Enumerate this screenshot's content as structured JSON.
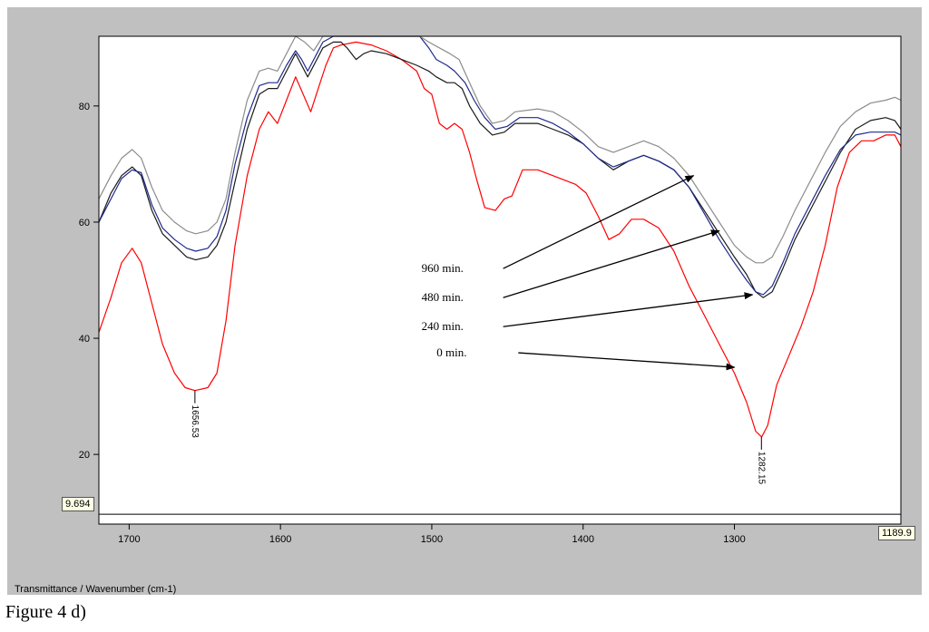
{
  "caption": "Figure 4 d)",
  "chart_data": {
    "type": "line",
    "xlabel": "Transmittance / Wavenumber (cm-1)",
    "xlim": [
      1720,
      1190
    ],
    "ylim": [
      8,
      92
    ],
    "x_ticks": [
      1700,
      1600,
      1500,
      1400,
      1300
    ],
    "y_ticks": [
      20,
      40,
      60,
      80
    ],
    "grid": false,
    "cursor": {
      "y_value": "9.694",
      "x_value": "1189.9"
    },
    "peak_labels": [
      {
        "x": 1656.53,
        "y": 31,
        "text": "1656.53"
      },
      {
        "x": 1282.15,
        "y": 23,
        "text": "1282.15"
      }
    ],
    "annotations": [
      {
        "text": "960 min.",
        "from": [
          1490,
          52
        ],
        "to": [
          1327,
          68
        ]
      },
      {
        "text": "480 min.",
        "from": [
          1490,
          47
        ],
        "to": [
          1310,
          58.5
        ]
      },
      {
        "text": "240 min.",
        "from": [
          1490,
          42
        ],
        "to": [
          1288,
          47.5
        ]
      },
      {
        "text": "0 min.",
        "from": [
          1480,
          37.5
        ],
        "to": [
          1300,
          35
        ]
      }
    ],
    "series": [
      {
        "color": "#ff0000",
        "points": [
          [
            1720,
            41
          ],
          [
            1712,
            47
          ],
          [
            1705,
            53
          ],
          [
            1698,
            55.5
          ],
          [
            1692,
            53
          ],
          [
            1685,
            46
          ],
          [
            1678,
            39
          ],
          [
            1670,
            34
          ],
          [
            1663,
            31.5
          ],
          [
            1656.5,
            31
          ],
          [
            1648,
            31.5
          ],
          [
            1642,
            34
          ],
          [
            1636,
            43
          ],
          [
            1630,
            56
          ],
          [
            1622,
            68
          ],
          [
            1614,
            76
          ],
          [
            1608,
            79
          ],
          [
            1602,
            77
          ],
          [
            1596,
            81
          ],
          [
            1590,
            85
          ],
          [
            1585,
            82
          ],
          [
            1580,
            79
          ],
          [
            1575,
            83
          ],
          [
            1570,
            87
          ],
          [
            1565,
            90
          ],
          [
            1560,
            90.5
          ],
          [
            1550,
            91
          ],
          [
            1540,
            90.5
          ],
          [
            1530,
            89.5
          ],
          [
            1520,
            88
          ],
          [
            1510,
            86
          ],
          [
            1505,
            83
          ],
          [
            1500,
            82
          ],
          [
            1495,
            77
          ],
          [
            1490,
            76
          ],
          [
            1485,
            77
          ],
          [
            1480,
            76
          ],
          [
            1475,
            72
          ],
          [
            1470,
            67
          ],
          [
            1465,
            62.5
          ],
          [
            1458,
            62
          ],
          [
            1452,
            64
          ],
          [
            1447,
            64.5
          ],
          [
            1440,
            69
          ],
          [
            1430,
            69
          ],
          [
            1420,
            68
          ],
          [
            1405,
            66.5
          ],
          [
            1398,
            65
          ],
          [
            1390,
            61
          ],
          [
            1383,
            57
          ],
          [
            1376,
            58
          ],
          [
            1368,
            60.5
          ],
          [
            1360,
            60.5
          ],
          [
            1350,
            59
          ],
          [
            1340,
            55
          ],
          [
            1330,
            49
          ],
          [
            1320,
            44
          ],
          [
            1310,
            39
          ],
          [
            1300,
            34
          ],
          [
            1292,
            29
          ],
          [
            1286,
            24
          ],
          [
            1282,
            23
          ],
          [
            1278,
            25
          ],
          [
            1272,
            32
          ],
          [
            1264,
            37
          ],
          [
            1256,
            42
          ],
          [
            1248,
            48
          ],
          [
            1240,
            56
          ],
          [
            1232,
            66
          ],
          [
            1224,
            72
          ],
          [
            1216,
            74
          ],
          [
            1208,
            74
          ],
          [
            1200,
            75
          ],
          [
            1194,
            75
          ],
          [
            1190,
            73
          ]
        ]
      },
      {
        "color": "#1a1a1a",
        "points": [
          [
            1720,
            60
          ],
          [
            1712,
            65
          ],
          [
            1705,
            68
          ],
          [
            1698,
            69.5
          ],
          [
            1692,
            68
          ],
          [
            1685,
            62
          ],
          [
            1678,
            58
          ],
          [
            1670,
            56
          ],
          [
            1662,
            54
          ],
          [
            1656,
            53.5
          ],
          [
            1648,
            54
          ],
          [
            1642,
            56
          ],
          [
            1636,
            60
          ],
          [
            1630,
            67
          ],
          [
            1622,
            76
          ],
          [
            1614,
            82
          ],
          [
            1608,
            83
          ],
          [
            1602,
            83
          ],
          [
            1596,
            86
          ],
          [
            1590,
            89
          ],
          [
            1586,
            87
          ],
          [
            1582,
            85
          ],
          [
            1576,
            88
          ],
          [
            1572,
            90
          ],
          [
            1565,
            91
          ],
          [
            1560,
            91
          ],
          [
            1556,
            90
          ],
          [
            1550,
            88
          ],
          [
            1545,
            89
          ],
          [
            1540,
            89.5
          ],
          [
            1530,
            89
          ],
          [
            1520,
            88
          ],
          [
            1510,
            87
          ],
          [
            1502,
            86
          ],
          [
            1497,
            85
          ],
          [
            1490,
            84
          ],
          [
            1485,
            84
          ],
          [
            1480,
            83
          ],
          [
            1475,
            80
          ],
          [
            1468,
            77
          ],
          [
            1460,
            75
          ],
          [
            1452,
            75.5
          ],
          [
            1445,
            77
          ],
          [
            1430,
            77
          ],
          [
            1420,
            76
          ],
          [
            1410,
            75
          ],
          [
            1400,
            73.5
          ],
          [
            1390,
            71
          ],
          [
            1380,
            69
          ],
          [
            1370,
            70.5
          ],
          [
            1360,
            71.5
          ],
          [
            1350,
            70.5
          ],
          [
            1340,
            69
          ],
          [
            1330,
            66
          ],
          [
            1320,
            62
          ],
          [
            1310,
            58
          ],
          [
            1300,
            54
          ],
          [
            1292,
            51
          ],
          [
            1286,
            48
          ],
          [
            1281,
            47
          ],
          [
            1275,
            48
          ],
          [
            1268,
            52
          ],
          [
            1260,
            57
          ],
          [
            1250,
            62
          ],
          [
            1240,
            67
          ],
          [
            1230,
            72
          ],
          [
            1220,
            76
          ],
          [
            1210,
            77.5
          ],
          [
            1200,
            78
          ],
          [
            1194,
            77.5
          ],
          [
            1190,
            76
          ]
        ]
      },
      {
        "color": "#1f2a8c",
        "points": [
          [
            1720,
            60
          ],
          [
            1712,
            64
          ],
          [
            1705,
            67.5
          ],
          [
            1698,
            69
          ],
          [
            1692,
            68.5
          ],
          [
            1685,
            63
          ],
          [
            1678,
            59
          ],
          [
            1670,
            57
          ],
          [
            1662,
            55.5
          ],
          [
            1656,
            55
          ],
          [
            1648,
            55.5
          ],
          [
            1642,
            57.5
          ],
          [
            1636,
            62
          ],
          [
            1630,
            70
          ],
          [
            1622,
            78
          ],
          [
            1614,
            83.5
          ],
          [
            1608,
            84
          ],
          [
            1602,
            84
          ],
          [
            1596,
            87
          ],
          [
            1590,
            89.5
          ],
          [
            1586,
            88
          ],
          [
            1582,
            86
          ],
          [
            1576,
            89
          ],
          [
            1572,
            91
          ],
          [
            1565,
            92
          ],
          [
            1555,
            92
          ],
          [
            1545,
            92
          ],
          [
            1535,
            92
          ],
          [
            1525,
            92
          ],
          [
            1515,
            92
          ],
          [
            1508,
            92
          ],
          [
            1502,
            90
          ],
          [
            1497,
            88
          ],
          [
            1490,
            87
          ],
          [
            1485,
            86
          ],
          [
            1478,
            84
          ],
          [
            1472,
            81
          ],
          [
            1465,
            78
          ],
          [
            1458,
            76
          ],
          [
            1450,
            76.5
          ],
          [
            1442,
            78
          ],
          [
            1430,
            78
          ],
          [
            1420,
            77
          ],
          [
            1410,
            75.5
          ],
          [
            1400,
            73.5
          ],
          [
            1390,
            71
          ],
          [
            1380,
            69.5
          ],
          [
            1370,
            70.5
          ],
          [
            1360,
            71.5
          ],
          [
            1350,
            70.5
          ],
          [
            1340,
            69
          ],
          [
            1330,
            66
          ],
          [
            1320,
            61.5
          ],
          [
            1310,
            57
          ],
          [
            1300,
            53
          ],
          [
            1292,
            50
          ],
          [
            1286,
            48
          ],
          [
            1281,
            47.5
          ],
          [
            1275,
            49
          ],
          [
            1268,
            53
          ],
          [
            1260,
            58
          ],
          [
            1250,
            63
          ],
          [
            1240,
            68
          ],
          [
            1230,
            72.5
          ],
          [
            1220,
            75
          ],
          [
            1210,
            75.5
          ],
          [
            1200,
            75.5
          ],
          [
            1194,
            75.5
          ],
          [
            1190,
            75
          ]
        ]
      },
      {
        "color": "#8c8c8c",
        "points": [
          [
            1720,
            64
          ],
          [
            1712,
            68
          ],
          [
            1705,
            71
          ],
          [
            1698,
            72.5
          ],
          [
            1692,
            71
          ],
          [
            1685,
            66
          ],
          [
            1678,
            62
          ],
          [
            1670,
            60
          ],
          [
            1662,
            58.5
          ],
          [
            1656,
            58
          ],
          [
            1648,
            58.5
          ],
          [
            1642,
            60
          ],
          [
            1636,
            64
          ],
          [
            1630,
            72
          ],
          [
            1622,
            81
          ],
          [
            1614,
            86
          ],
          [
            1608,
            86.5
          ],
          [
            1602,
            86
          ],
          [
            1596,
            89
          ],
          [
            1590,
            92
          ],
          [
            1584,
            91
          ],
          [
            1578,
            89.5
          ],
          [
            1572,
            92
          ],
          [
            1565,
            92
          ],
          [
            1550,
            92
          ],
          [
            1535,
            92
          ],
          [
            1520,
            92
          ],
          [
            1508,
            92
          ],
          [
            1502,
            91
          ],
          [
            1495,
            90
          ],
          [
            1488,
            89
          ],
          [
            1482,
            88
          ],
          [
            1475,
            84
          ],
          [
            1468,
            80
          ],
          [
            1460,
            77
          ],
          [
            1452,
            77.5
          ],
          [
            1445,
            79
          ],
          [
            1430,
            79.5
          ],
          [
            1420,
            79
          ],
          [
            1410,
            77.5
          ],
          [
            1400,
            75.5
          ],
          [
            1390,
            73
          ],
          [
            1380,
            72
          ],
          [
            1370,
            73
          ],
          [
            1360,
            74
          ],
          [
            1350,
            73
          ],
          [
            1340,
            71
          ],
          [
            1330,
            68
          ],
          [
            1320,
            64
          ],
          [
            1310,
            60
          ],
          [
            1300,
            56
          ],
          [
            1292,
            54
          ],
          [
            1286,
            53
          ],
          [
            1281,
            53
          ],
          [
            1275,
            54
          ],
          [
            1268,
            57.5
          ],
          [
            1260,
            62
          ],
          [
            1250,
            67
          ],
          [
            1240,
            72
          ],
          [
            1230,
            76.5
          ],
          [
            1220,
            79
          ],
          [
            1210,
            80.5
          ],
          [
            1200,
            81
          ],
          [
            1194,
            81.5
          ],
          [
            1190,
            81
          ]
        ]
      }
    ]
  }
}
